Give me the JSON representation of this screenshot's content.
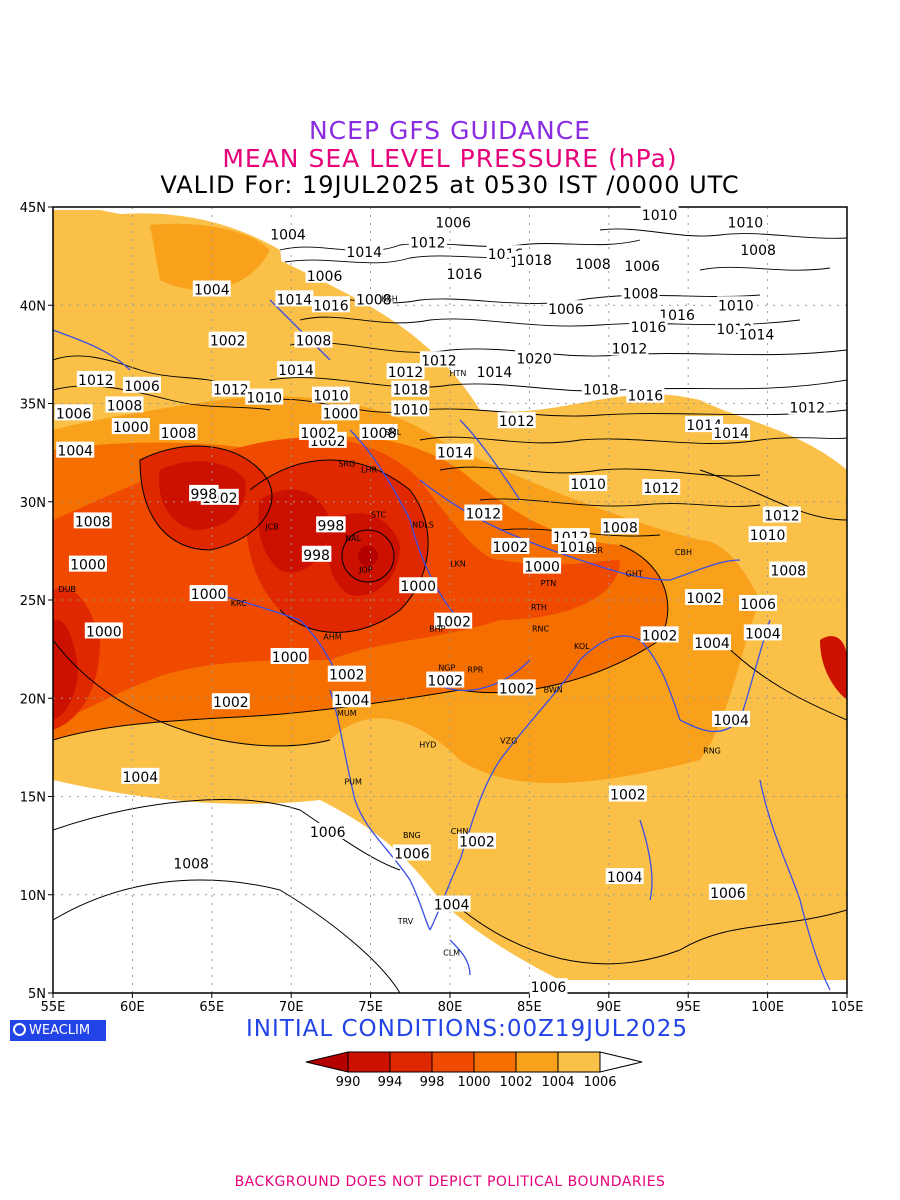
{
  "title_lines": [
    "NCEP GFS GUIDANCE",
    "MEAN SEA LEVEL PRESSURE (hPa)",
    "VALID For: 19JUL2025 at 0530 IST /0000 UTC"
  ],
  "map": {
    "lat_labels": [
      "45N",
      "40N",
      "35N",
      "30N",
      "25N",
      "20N",
      "15N",
      "10N",
      "5N"
    ],
    "lon_labels": [
      "55E",
      "60E",
      "65E",
      "70E",
      "75E",
      "80E",
      "85E",
      "90E",
      "95E",
      "100E",
      "105E"
    ],
    "extent": {
      "lon_min": 55,
      "lon_max": 105,
      "lat_min": 5,
      "lat_max": 45
    },
    "grid": "dotted"
  },
  "isobar_labels": [
    "1004",
    "1006",
    "1012",
    "1016",
    "1014",
    "1018",
    "1008",
    "1010",
    "1002",
    "1000",
    "998",
    "1020",
    "1006",
    "1004"
  ],
  "cities": [
    "KSH",
    "HTN",
    "SRG",
    "LHR",
    "SML",
    "STC",
    "NDLS",
    "JCB",
    "NAL",
    "JOP",
    "LKN",
    "PTN",
    "GHT",
    "CBH",
    "DBR",
    "KRC",
    "DUB",
    "AHM",
    "BHP",
    "RTH",
    "RNC",
    "KOL",
    "NGP",
    "RPR",
    "BWN",
    "MUM",
    "HYD",
    "VZG",
    "RNG",
    "PUM",
    "BNG",
    "CHN",
    "TRV",
    "CLM"
  ],
  "legend": {
    "ticks": [
      "990",
      "994",
      "998",
      "1000",
      "1002",
      "1004",
      "1006"
    ],
    "colors": [
      "#b50000",
      "#cc1100",
      "#e02800",
      "#f04a00",
      "#f56e00",
      "#f9a11a",
      "#fac048",
      "#ffffff"
    ]
  },
  "brand": "WEACLIM",
  "initial_conditions": "INITIAL  CONDITIONS:00Z19JUL2025",
  "footer": "BACKGROUND DOES NOT DEPICT POLITICAL BOUNDARIES"
}
